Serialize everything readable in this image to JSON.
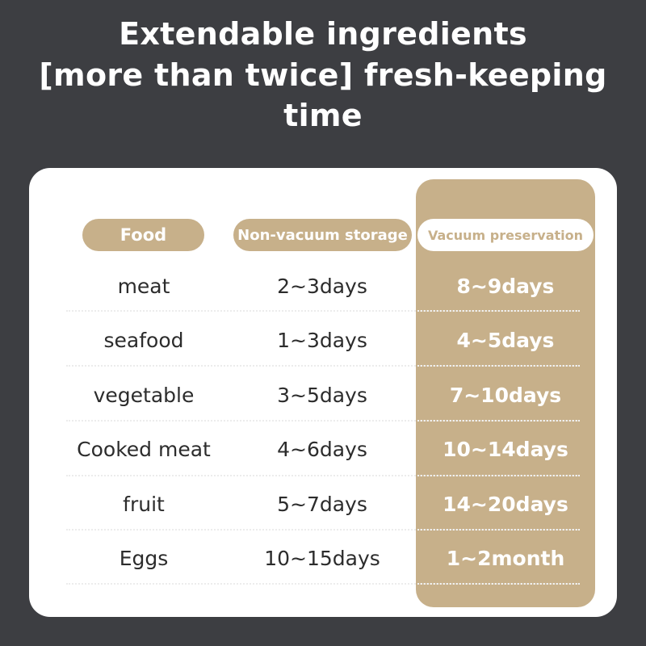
{
  "headline": {
    "line1": "Extendable ingredients",
    "line2": "[more than twice] fresh-keeping time"
  },
  "colors": {
    "background": "#3d3e42",
    "accent": "#c7b08a",
    "card": "#ffffff"
  },
  "table": {
    "headers": {
      "food": "Food",
      "non_vacuum": "Non-vacuum storage",
      "vacuum": "Vacuum preservation"
    },
    "rows": [
      {
        "food": "meat",
        "non_vacuum": "2~3days",
        "vacuum": "8~9days"
      },
      {
        "food": "seafood",
        "non_vacuum": "1~3days",
        "vacuum": "4~5days"
      },
      {
        "food": "vegetable",
        "non_vacuum": "3~5days",
        "vacuum": "7~10days"
      },
      {
        "food": "Cooked meat",
        "non_vacuum": "4~6days",
        "vacuum": "10~14days"
      },
      {
        "food": "fruit",
        "non_vacuum": "5~7days",
        "vacuum": "14~20days"
      },
      {
        "food": "Eggs",
        "non_vacuum": "10~15days",
        "vacuum": "1~2month"
      }
    ]
  }
}
